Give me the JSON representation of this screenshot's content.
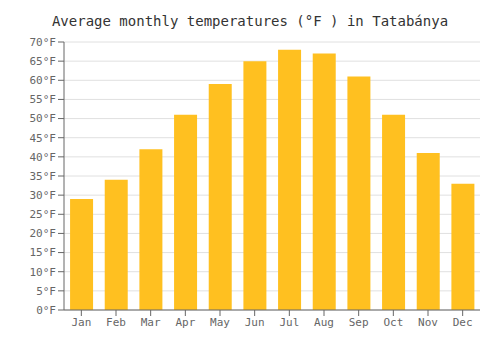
{
  "chart_data": {
    "type": "bar",
    "title": "Average monthly temperatures (°F ) in Tatabánya",
    "categories": [
      "Jan",
      "Feb",
      "Mar",
      "Apr",
      "May",
      "Jun",
      "Jul",
      "Aug",
      "Sep",
      "Oct",
      "Nov",
      "Dec"
    ],
    "values": [
      29,
      34,
      42,
      51,
      59,
      65,
      68,
      67,
      61,
      51,
      41,
      33
    ],
    "color": "#FFC020",
    "ylim": [
      0,
      70
    ],
    "yticks": [
      {
        "value": 0,
        "label": "0°F"
      },
      {
        "value": 5,
        "label": "5°F"
      },
      {
        "value": 10,
        "label": "10°F"
      },
      {
        "value": 15,
        "label": "15°F"
      },
      {
        "value": 20,
        "label": "20°F"
      },
      {
        "value": 25,
        "label": "25°F"
      },
      {
        "value": 30,
        "label": "30°F"
      },
      {
        "value": 35,
        "label": "35°F"
      },
      {
        "value": 40,
        "label": "40°F"
      },
      {
        "value": 45,
        "label": "45°F"
      },
      {
        "value": 50,
        "label": "50°F"
      },
      {
        "value": 55,
        "label": "55°F"
      },
      {
        "value": 60,
        "label": "60°F"
      },
      {
        "value": 65,
        "label": "65°F"
      },
      {
        "value": 70,
        "label": "70°F"
      }
    ],
    "grid": true
  }
}
